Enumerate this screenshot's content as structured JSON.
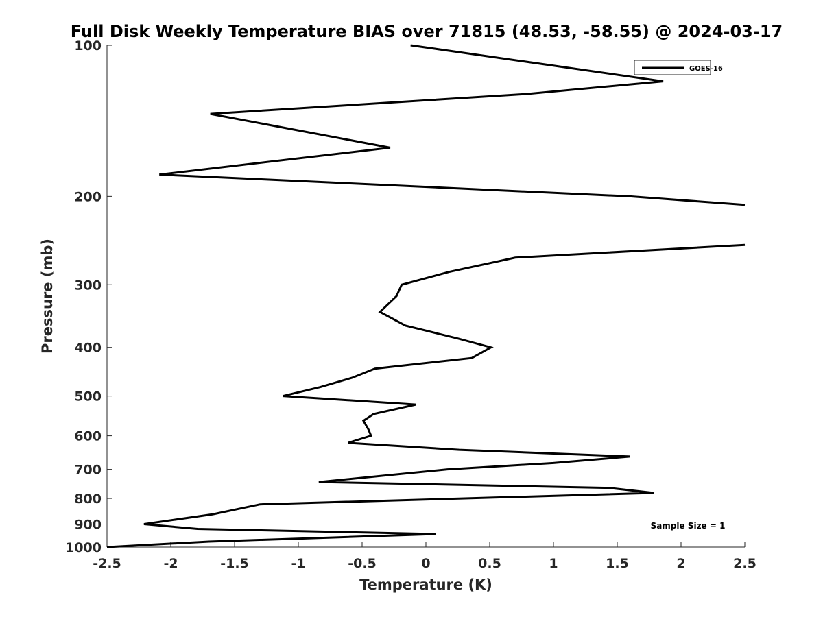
{
  "chart_data": {
    "type": "line",
    "title": "Full Disk Weekly Temperature BIAS over 71815 (48.53, -58.55) @ 2024-03-17",
    "xlabel": "Temperature (K)",
    "ylabel": "Pressure (mb)",
    "xlim": [
      -2.5,
      2.5
    ],
    "ylim": [
      100,
      1000
    ],
    "y_scale": "log",
    "y_reversed": true,
    "x_ticks": [
      -2.5,
      -2,
      -1.5,
      -1,
      -0.5,
      0,
      0.5,
      1,
      1.5,
      2,
      2.5
    ],
    "x_tick_labels": [
      "-2.5",
      "-2",
      "-1.5",
      "-1",
      "-0.5",
      "0",
      "0.5",
      "1",
      "1.5",
      "2",
      "2.5"
    ],
    "y_ticks": [
      100,
      200,
      300,
      400,
      500,
      600,
      700,
      800,
      900,
      1000
    ],
    "y_tick_labels": [
      "100",
      "200",
      "300",
      "400",
      "500",
      "600",
      "700",
      "800",
      "900",
      "1000"
    ],
    "grid": false,
    "legend_position": "top-right",
    "series": [
      {
        "name": "GOES-16",
        "color": "#000000",
        "points": [
          {
            "x": -0.12,
            "p": 100
          },
          {
            "x": 1.86,
            "p": 118
          },
          {
            "x": 0.8,
            "p": 125
          },
          {
            "x": -1.69,
            "p": 137
          },
          {
            "x": -0.28,
            "p": 160
          },
          {
            "x": -2.09,
            "p": 181
          },
          {
            "x": 1.6,
            "p": 200
          },
          {
            "x": 2.5,
            "p": 208
          },
          {
            "x": null,
            "p": 230
          },
          {
            "x": 2.5,
            "p": 250
          },
          {
            "x": 0.7,
            "p": 265
          },
          {
            "x": 0.18,
            "p": 283
          },
          {
            "x": -0.19,
            "p": 300
          },
          {
            "x": -0.23,
            "p": 316
          },
          {
            "x": -0.36,
            "p": 340
          },
          {
            "x": -0.16,
            "p": 362
          },
          {
            "x": 0.25,
            "p": 384
          },
          {
            "x": 0.51,
            "p": 400
          },
          {
            "x": 0.36,
            "p": 420
          },
          {
            "x": -0.4,
            "p": 441
          },
          {
            "x": -0.58,
            "p": 460
          },
          {
            "x": -0.83,
            "p": 480
          },
          {
            "x": -1.12,
            "p": 500
          },
          {
            "x": -0.08,
            "p": 520
          },
          {
            "x": -0.41,
            "p": 543
          },
          {
            "x": -0.49,
            "p": 560
          },
          {
            "x": -0.45,
            "p": 583
          },
          {
            "x": -0.43,
            "p": 600
          },
          {
            "x": -0.61,
            "p": 620
          },
          {
            "x": 0.26,
            "p": 640
          },
          {
            "x": 1.6,
            "p": 660
          },
          {
            "x": 1.0,
            "p": 680
          },
          {
            "x": 0.17,
            "p": 700
          },
          {
            "x": -0.84,
            "p": 742
          },
          {
            "x": 1.43,
            "p": 762
          },
          {
            "x": 1.79,
            "p": 780
          },
          {
            "x": -1.3,
            "p": 822
          },
          {
            "x": -1.67,
            "p": 860
          },
          {
            "x": -2.21,
            "p": 900
          },
          {
            "x": -1.79,
            "p": 920
          },
          {
            "x": 0.08,
            "p": 942
          },
          {
            "x": -1.7,
            "p": 975
          },
          {
            "x": -2.5,
            "p": 1000
          }
        ]
      }
    ],
    "annotation": "Sample Size = 1"
  }
}
